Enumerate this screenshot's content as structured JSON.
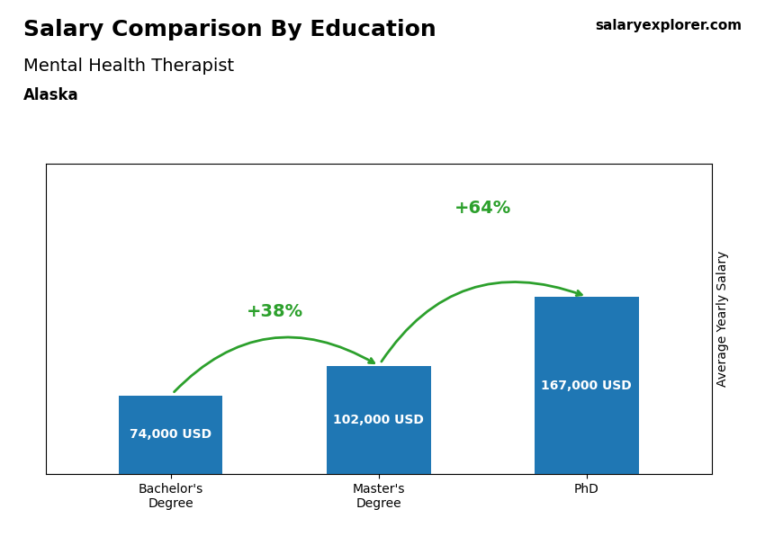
{
  "chart_data": {
    "type": "bar",
    "title": "Salary Comparison By Education",
    "subtitle": "Mental Health Therapist",
    "annotations": [
      "Alaska",
      "salaryexplorer.com"
    ],
    "ylabel": "Average Yearly Salary",
    "categories": [
      "Bachelor's\nDegree",
      "Master's\nDegree",
      "PhD"
    ],
    "values": [
      74000,
      102000,
      167000
    ],
    "value_labels": [
      "74,000 USD",
      "102,000 USD",
      "167,000 USD"
    ],
    "data_labels": true,
    "change_labels": [
      "+38%",
      "+64%"
    ],
    "ylim": [
      0,
      292250
    ],
    "tick_labels": "x",
    "grid": false
  }
}
